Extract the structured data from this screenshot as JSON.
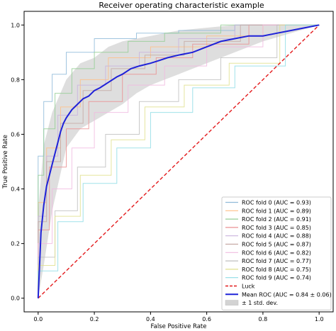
{
  "chart_data": {
    "type": "line",
    "title": "Receiver operating characteristic example",
    "xlabel": "False Positive Rate",
    "ylabel": "True Positive Rate",
    "xlim": [
      -0.05,
      1.05
    ],
    "ylim": [
      -0.05,
      1.05
    ],
    "xticks": [
      "0.0",
      "0.2",
      "0.4",
      "0.6",
      "0.8",
      "1.0"
    ],
    "yticks": [
      "0.0",
      "0.2",
      "0.4",
      "0.6",
      "0.8",
      "1.0"
    ],
    "legend_position": "lower-right",
    "grid": false,
    "series": [
      {
        "name": "ROC fold 0 (AUC = 0.93)",
        "color": "#8fbbd9",
        "x": [
          0,
          0,
          0.02,
          0.02,
          0.05,
          0.05,
          0.1,
          0.1,
          0.2,
          0.2,
          0.35,
          0.35,
          0.5,
          0.5,
          0.7,
          0.7,
          1.0
        ],
        "y": [
          0,
          0.52,
          0.52,
          0.72,
          0.72,
          0.82,
          0.82,
          0.9,
          0.9,
          0.95,
          0.95,
          0.97,
          0.97,
          0.98,
          0.98,
          1.0,
          1.0
        ]
      },
      {
        "name": "ROC fold 1 (AUC = 0.89)",
        "color": "#ffbf87",
        "x": [
          0,
          0,
          0.03,
          0.03,
          0.08,
          0.08,
          0.15,
          0.15,
          0.25,
          0.25,
          0.4,
          0.4,
          0.6,
          0.6,
          0.8,
          0.8,
          1.0
        ],
        "y": [
          0,
          0.35,
          0.35,
          0.55,
          0.55,
          0.7,
          0.7,
          0.8,
          0.8,
          0.88,
          0.88,
          0.92,
          0.92,
          0.96,
          0.96,
          1.0,
          1.0
        ]
      },
      {
        "name": "ROC fold 2 (AUC = 0.91)",
        "color": "#95cf95",
        "x": [
          0,
          0,
          0.02,
          0.02,
          0.06,
          0.06,
          0.12,
          0.12,
          0.2,
          0.2,
          0.32,
          0.32,
          0.45,
          0.45,
          0.65,
          0.65,
          1.0
        ],
        "y": [
          0,
          0.45,
          0.45,
          0.62,
          0.62,
          0.75,
          0.75,
          0.84,
          0.84,
          0.9,
          0.9,
          0.94,
          0.94,
          0.97,
          0.97,
          1.0,
          1.0
        ]
      },
      {
        "name": "ROC fold 3 (AUC = 0.85)",
        "color": "#ea9293",
        "x": [
          0,
          0,
          0.04,
          0.04,
          0.1,
          0.1,
          0.18,
          0.18,
          0.3,
          0.3,
          0.42,
          0.42,
          0.55,
          0.55,
          0.75,
          0.75,
          1.0
        ],
        "y": [
          0,
          0.25,
          0.25,
          0.48,
          0.48,
          0.62,
          0.62,
          0.72,
          0.72,
          0.82,
          0.82,
          0.88,
          0.88,
          0.93,
          0.93,
          1.0,
          1.0
        ]
      },
      {
        "name": "ROC fold 4 (AUC = 0.88)",
        "color": "#c9b3de",
        "x": [
          0,
          0,
          0.03,
          0.03,
          0.07,
          0.07,
          0.14,
          0.14,
          0.24,
          0.24,
          0.36,
          0.36,
          0.5,
          0.5,
          0.7,
          0.7,
          1.0
        ],
        "y": [
          0,
          0.3,
          0.3,
          0.52,
          0.52,
          0.67,
          0.67,
          0.78,
          0.78,
          0.85,
          0.85,
          0.9,
          0.9,
          0.95,
          0.95,
          1.0,
          1.0
        ]
      },
      {
        "name": "ROC fold 5 (AUC = 0.87)",
        "color": "#c6aaa4",
        "x": [
          0,
          0,
          0.03,
          0.03,
          0.08,
          0.08,
          0.16,
          0.16,
          0.26,
          0.26,
          0.38,
          0.38,
          0.52,
          0.52,
          0.72,
          0.72,
          1.0
        ],
        "y": [
          0,
          0.28,
          0.28,
          0.5,
          0.5,
          0.64,
          0.64,
          0.76,
          0.76,
          0.84,
          0.84,
          0.89,
          0.89,
          0.94,
          0.94,
          1.0,
          1.0
        ]
      },
      {
        "name": "ROC fold 6 (AUC = 0.82)",
        "color": "#f1bbe0",
        "x": [
          0,
          0,
          0.05,
          0.05,
          0.12,
          0.12,
          0.2,
          0.2,
          0.32,
          0.32,
          0.45,
          0.45,
          0.6,
          0.6,
          0.8,
          0.8,
          1.0
        ],
        "y": [
          0,
          0.2,
          0.2,
          0.4,
          0.4,
          0.55,
          0.55,
          0.68,
          0.68,
          0.78,
          0.78,
          0.85,
          0.85,
          0.92,
          0.92,
          1.0,
          1.0
        ]
      },
      {
        "name": "ROC fold 7 (AUC = 0.77)",
        "color": "#bfbfbf",
        "x": [
          0,
          0,
          0.06,
          0.06,
          0.14,
          0.14,
          0.24,
          0.24,
          0.36,
          0.36,
          0.5,
          0.5,
          0.65,
          0.65,
          0.85,
          0.85,
          1.0
        ],
        "y": [
          0,
          0.15,
          0.15,
          0.32,
          0.32,
          0.48,
          0.48,
          0.6,
          0.6,
          0.72,
          0.72,
          0.8,
          0.8,
          0.88,
          0.88,
          1.0,
          1.0
        ]
      },
      {
        "name": "ROC fold 8 (AUC = 0.75)",
        "color": "#e0e08e",
        "x": [
          0,
          0,
          0.06,
          0.06,
          0.15,
          0.15,
          0.26,
          0.26,
          0.38,
          0.38,
          0.52,
          0.52,
          0.68,
          0.68,
          0.86,
          0.86,
          1.0
        ],
        "y": [
          0,
          0.12,
          0.12,
          0.3,
          0.3,
          0.45,
          0.45,
          0.58,
          0.58,
          0.7,
          0.7,
          0.78,
          0.78,
          0.86,
          0.86,
          1.0,
          1.0
        ]
      },
      {
        "name": "ROC fold 9 (AUC = 0.74)",
        "color": "#8fdde6",
        "x": [
          0,
          0,
          0.07,
          0.07,
          0.16,
          0.16,
          0.28,
          0.28,
          0.4,
          0.4,
          0.55,
          0.55,
          0.7,
          0.7,
          0.88,
          0.88,
          1.0
        ],
        "y": [
          0,
          0.1,
          0.1,
          0.28,
          0.28,
          0.42,
          0.42,
          0.55,
          0.55,
          0.68,
          0.68,
          0.77,
          0.77,
          0.85,
          0.85,
          1.0,
          1.0
        ]
      },
      {
        "name": "Luck",
        "color": "#e31a1c",
        "dash": true,
        "x": [
          0,
          1
        ],
        "y": [
          0,
          1
        ]
      },
      {
        "name": "Mean ROC (AUC = 0.84 ± 0.06)",
        "color": "#1f22d8",
        "bold": true,
        "x": [
          0,
          0.01,
          0.02,
          0.03,
          0.04,
          0.05,
          0.06,
          0.07,
          0.08,
          0.09,
          0.1,
          0.12,
          0.14,
          0.16,
          0.18,
          0.2,
          0.22,
          0.25,
          0.28,
          0.3,
          0.33,
          0.36,
          0.4,
          0.43,
          0.46,
          0.5,
          0.55,
          0.6,
          0.65,
          0.7,
          0.75,
          0.8,
          0.85,
          0.9,
          0.95,
          1.0
        ],
        "y": [
          0,
          0.24,
          0.34,
          0.41,
          0.45,
          0.49,
          0.53,
          0.57,
          0.61,
          0.64,
          0.66,
          0.69,
          0.71,
          0.73,
          0.74,
          0.76,
          0.77,
          0.79,
          0.81,
          0.82,
          0.84,
          0.85,
          0.86,
          0.87,
          0.88,
          0.89,
          0.9,
          0.92,
          0.94,
          0.95,
          0.96,
          0.96,
          0.97,
          0.98,
          0.99,
          1.0
        ]
      }
    ],
    "band": {
      "name": "± 1 std. dev.",
      "color": "#d3d3d3",
      "x": [
        0,
        0.02,
        0.05,
        0.1,
        0.15,
        0.2,
        0.25,
        0.3,
        0.35,
        0.4,
        0.45,
        0.5,
        0.6,
        0.7,
        0.8,
        0.9,
        1.0
      ],
      "upper": [
        0.32,
        0.56,
        0.68,
        0.8,
        0.86,
        0.88,
        0.92,
        0.94,
        0.95,
        0.96,
        0.97,
        0.98,
        0.99,
        1.0,
        1.0,
        1.0,
        1.0
      ],
      "lower": [
        0,
        0.12,
        0.32,
        0.55,
        0.62,
        0.65,
        0.68,
        0.71,
        0.75,
        0.78,
        0.8,
        0.82,
        0.86,
        0.9,
        0.94,
        0.97,
        1.0
      ]
    }
  }
}
